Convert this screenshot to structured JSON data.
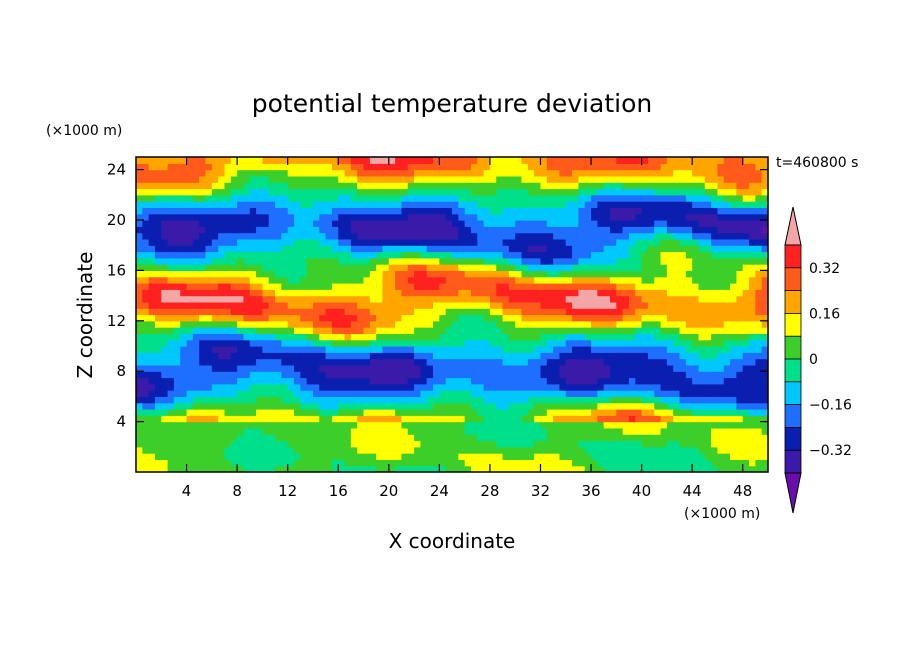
{
  "chart_data": {
    "type": "heatmap",
    "title": "potential temperature deviation",
    "xlabel": "X coordinate",
    "ylabel": "Z coordinate",
    "x_unit": "(×1000 m)",
    "y_unit": "(×1000 m)",
    "time_label": "t=460800 s",
    "xlim": [
      0,
      50
    ],
    "ylim": [
      0,
      25
    ],
    "x_ticks": [
      4,
      8,
      12,
      16,
      20,
      24,
      28,
      32,
      36,
      40,
      44,
      48
    ],
    "y_ticks": [
      4,
      8,
      12,
      16,
      20,
      24
    ],
    "colorbar": {
      "levels": [
        -0.4,
        -0.32,
        -0.24,
        -0.16,
        -0.08,
        0,
        0.08,
        0.16,
        0.24,
        0.32,
        0.4
      ],
      "labels": [
        "0.32",
        "0.16",
        "0",
        "−0.16",
        "−0.32"
      ],
      "label_values": [
        0.32,
        0.16,
        0,
        -0.16,
        -0.32
      ],
      "colors": [
        "#6a0dad",
        "#3a1aa8",
        "#0a1fb0",
        "#1f6fff",
        "#00c8ff",
        "#00e08a",
        "#3ccf2a",
        "#ffff00",
        "#ffa500",
        "#ff5a1a",
        "#ff2020",
        "#f4a6a6"
      ],
      "extend": "both"
    },
    "grid": false
  }
}
